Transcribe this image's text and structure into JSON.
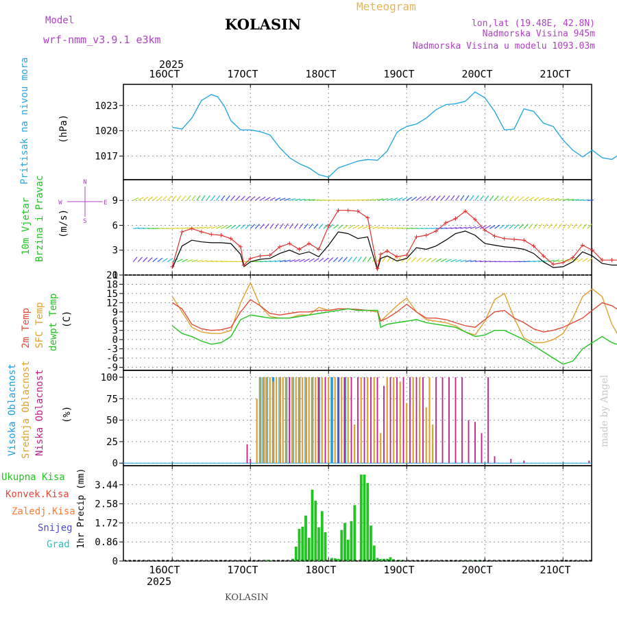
{
  "header": {
    "model_label": "Model",
    "model_name": "wrf-nmm_v3.9.1  e3km",
    "station": "KOLASIN",
    "product": "Meteogram",
    "coords": "lon,lat (19.48E, 42.8N)",
    "elevation": "Nadmorska Visina 945m",
    "model_elevation": "Nadmorska Visina u modelu 1093.03m"
  },
  "footer": {
    "station": "KOLASIN",
    "credit": "made by Angel"
  },
  "time_axis": {
    "year": "2025",
    "day_labels": [
      "16OCT",
      "17OCT",
      "18OCT",
      "19OCT",
      "20OCT",
      "21OCT"
    ]
  },
  "colors": {
    "pressure": "#2aa8e0",
    "wind_speed": "#000000",
    "wind_gust": "#e03030",
    "t2m": "#e04a3a",
    "tsfc": "#e0a030",
    "dewpoint": "#22c322",
    "high_cloud": "#1aa0e0",
    "mid_cloud": "#e0a030",
    "low_cloud": "#c0208a",
    "precip": "#22c322",
    "grid": "#999999"
  },
  "chart_data": [
    {
      "type": "line",
      "panel": "pressure",
      "ylabel_primary": "Pritisak na nivou mora",
      "unit": "(hPa)",
      "yticks": [
        1017,
        1020,
        1023
      ],
      "ylim": [
        1014.2,
        1025.5
      ],
      "x": [
        0,
        3,
        6,
        9,
        12,
        14,
        16,
        18,
        21,
        24,
        27,
        30,
        33,
        36,
        39,
        42,
        45,
        48,
        51,
        54,
        57,
        60,
        63,
        66,
        69,
        70,
        72,
        75,
        78,
        81,
        84,
        87,
        90,
        93,
        96,
        99,
        102,
        105,
        108,
        111,
        114,
        117,
        120,
        123,
        126,
        129,
        132,
        135,
        138,
        141,
        144,
        147,
        150,
        153,
        156,
        158
      ],
      "values": [
        1020.4,
        1020.2,
        1021.5,
        1023.6,
        1024.3,
        1024.0,
        1022.9,
        1021.2,
        1020.1,
        1020.1,
        1019.9,
        1019.5,
        1018.0,
        1016.8,
        1016.1,
        1015.6,
        1014.8,
        1014.5,
        1015.6,
        1016.0,
        1016.4,
        1016.6,
        1016.5,
        1017.6,
        1019.8,
        1020.1,
        1020.5,
        1020.8,
        1021.5,
        1022.5,
        1023.1,
        1023.2,
        1023.5,
        1024.6,
        1023.9,
        1022.3,
        1020.1,
        1020.2,
        1022.6,
        1022.3,
        1020.9,
        1020.5,
        1018.9,
        1017.7,
        1016.9,
        1017.7,
        1016.8,
        1016.6,
        1017.4,
        1016.7,
        1016.2,
        1015.7,
        1015.1,
        1014.8,
        1014.6,
        1014.4
      ]
    },
    {
      "type": "line",
      "panel": "wind",
      "ylabel_primary": "10m Vjetar",
      "ylabel_secondary": "Brzina i Pravac",
      "unit": "(m/s)",
      "compass": [
        "N",
        "W",
        "E",
        "S"
      ],
      "yticks": [
        0,
        3,
        6,
        9
      ],
      "ylim": [
        0,
        11.5
      ],
      "x": [
        0,
        3,
        6,
        9,
        12,
        15,
        18,
        21,
        22,
        24,
        27,
        30,
        33,
        36,
        39,
        42,
        45,
        48,
        51,
        54,
        57,
        60,
        63,
        64,
        66,
        69,
        72,
        75,
        78,
        81,
        84,
        87,
        90,
        93,
        96,
        99,
        102,
        105,
        108,
        111,
        114,
        117,
        120,
        123,
        126,
        129,
        132,
        135,
        138,
        141,
        144,
        147,
        150,
        153,
        156,
        158
      ],
      "series": [
        {
          "name": "speed",
          "values": [
            0.8,
            3.5,
            4.2,
            4.0,
            3.9,
            3.9,
            3.8,
            2.5,
            1.0,
            1.6,
            1.9,
            2.0,
            2.6,
            3.0,
            2.5,
            2.8,
            2.2,
            3.6,
            5.2,
            5.0,
            4.4,
            4.6,
            0.6,
            2.0,
            2.3,
            1.7,
            2.0,
            3.3,
            3.1,
            3.5,
            4.2,
            5.0,
            5.3,
            4.8,
            3.8,
            3.6,
            3.4,
            3.3,
            3.1,
            2.6,
            1.6,
            0.9,
            1.0,
            1.6,
            2.8,
            2.3,
            1.4,
            1.2,
            1.2,
            1.6,
            1.6,
            1.9,
            1.9,
            2.8,
            5.1,
            6.0
          ]
        },
        {
          "name": "gust",
          "values": [
            1.0,
            5.2,
            5.6,
            5.2,
            4.9,
            4.8,
            4.4,
            3.4,
            1.2,
            2.0,
            2.3,
            2.4,
            3.4,
            3.8,
            3.1,
            3.8,
            3.1,
            5.9,
            7.8,
            7.8,
            7.7,
            6.9,
            0.8,
            2.5,
            2.9,
            2.2,
            2.4,
            4.6,
            4.8,
            5.3,
            6.3,
            6.8,
            7.7,
            6.7,
            5.4,
            4.7,
            4.4,
            4.3,
            4.2,
            3.5,
            2.3,
            1.3,
            1.5,
            2.1,
            3.6,
            3.0,
            1.8,
            1.8,
            1.8,
            2.4,
            2.3,
            2.8,
            3.0,
            3.8,
            6.4,
            7.1
          ]
        }
      ]
    },
    {
      "type": "line",
      "panel": "temperature",
      "labels": [
        "2m Temp",
        "SFC Temp",
        "dewpt Temp"
      ],
      "unit": "(C)",
      "yticks": [
        -9,
        -6,
        -3,
        0,
        3,
        6,
        9,
        12,
        15,
        18,
        21
      ],
      "ylim": [
        -10,
        21
      ],
      "x": [
        0,
        3,
        6,
        9,
        12,
        15,
        18,
        21,
        24,
        27,
        30,
        33,
        36,
        39,
        42,
        45,
        48,
        51,
        54,
        57,
        60,
        63,
        64,
        66,
        69,
        72,
        75,
        78,
        81,
        84,
        87,
        90,
        93,
        96,
        99,
        102,
        105,
        108,
        111,
        114,
        117,
        120,
        123,
        126,
        129,
        132,
        135,
        138,
        141,
        144,
        147,
        150,
        153,
        156,
        158
      ],
      "series": [
        {
          "name": "2m Temp",
          "values": [
            12,
            10,
            5,
            3.5,
            3.0,
            3.2,
            4.0,
            9.0,
            13.0,
            11.0,
            8.5,
            8.0,
            8.5,
            9.0,
            9.0,
            9.5,
            9.5,
            10.0,
            10.0,
            9.8,
            9.5,
            9.5,
            6.0,
            7.0,
            9.0,
            11.5,
            9.0,
            7.0,
            7.0,
            6.5,
            5.5,
            4.5,
            4.0,
            6.5,
            9.0,
            9.5,
            7.0,
            5.5,
            3.5,
            2.5,
            3.0,
            4.0,
            5.5,
            7.0,
            9.5,
            12.0,
            11.0,
            9.0,
            7.0,
            5.0,
            4.0,
            4.0,
            8.5,
            11.5,
            11.5
          ]
        },
        {
          "name": "SFC Temp",
          "values": [
            14,
            9,
            4,
            2.5,
            2.0,
            2.0,
            3.0,
            12.0,
            18.5,
            11.0,
            7.5,
            7.0,
            7.0,
            8.0,
            8.0,
            10.5,
            9.5,
            10.0,
            10.0,
            9.5,
            9.5,
            9.0,
            6.0,
            8.0,
            11.0,
            13.5,
            9.0,
            6.5,
            6.0,
            5.5,
            4.5,
            2.5,
            1.5,
            6.0,
            13.0,
            15.0,
            7.0,
            0.5,
            -1.0,
            -1.0,
            0.0,
            2.0,
            7.0,
            14.0,
            16.5,
            14.0,
            5.0,
            -0.5,
            -1.0,
            -1.0,
            0.0,
            4.0,
            13.0,
            15.5,
            15.0
          ]
        },
        {
          "name": "dewpt Temp",
          "values": [
            4.5,
            2.0,
            1.0,
            -0.5,
            -1.5,
            -1.0,
            1.0,
            6.5,
            8.0,
            7.5,
            7.0,
            7.0,
            7.0,
            7.5,
            8.0,
            8.5,
            9.0,
            9.5,
            10.0,
            9.5,
            9.5,
            9.5,
            4.0,
            5.0,
            5.5,
            6.0,
            6.5,
            5.5,
            5.0,
            4.5,
            4.0,
            2.5,
            1.0,
            1.5,
            3.0,
            3.0,
            1.5,
            0.0,
            -2.0,
            -4.0,
            -6.0,
            -8.0,
            -7.0,
            -3.0,
            -1.0,
            1.0,
            -1.0,
            -2.0,
            -4.0,
            -3.5,
            -2.0,
            0.0,
            3.0,
            2.5,
            1.5
          ]
        }
      ]
    },
    {
      "type": "bar",
      "panel": "clouds",
      "labels": [
        "Visoka Oblacnost",
        "Srednja Oblacnost",
        "Niska Oblacnost"
      ],
      "unit": "(%)",
      "yticks": [
        0,
        25,
        50,
        75,
        100
      ],
      "ylim": [
        -3,
        108
      ],
      "series": [
        {
          "name": "Visoka Oblacnost",
          "x": [
            27,
            28,
            29,
            31,
            33,
            35,
            37,
            39,
            41,
            43,
            45,
            49,
            51,
            53,
            141,
            142,
            143,
            144,
            145,
            146,
            147,
            148,
            149,
            150,
            151
          ],
          "values": [
            100,
            100,
            100,
            100,
            100,
            100,
            100,
            100,
            100,
            100,
            100,
            100,
            100,
            100,
            10,
            25,
            100,
            100,
            100,
            84,
            100,
            100,
            100,
            100,
            100
          ]
        },
        {
          "name": "Srednja Oblacnost",
          "x": [
            26,
            27,
            28,
            29,
            30,
            31,
            32,
            33,
            34,
            35,
            36,
            37,
            38,
            39,
            40,
            41,
            42,
            43,
            44,
            45,
            46,
            48,
            50,
            52,
            54,
            56,
            58,
            60,
            62,
            64,
            66,
            68,
            70,
            72,
            74,
            76,
            78,
            79,
            80,
            150
          ],
          "values": [
            75,
            100,
            100,
            100,
            100,
            95,
            100,
            100,
            100,
            100,
            100,
            100,
            100,
            100,
            100,
            100,
            100,
            100,
            100,
            100,
            100,
            100,
            100,
            100,
            100,
            45,
            100,
            100,
            100,
            35,
            100,
            100,
            95,
            70,
            100,
            100,
            65,
            100,
            45,
            100
          ]
        },
        {
          "name": "Niska Oblacnost",
          "x": [
            23,
            24,
            36,
            45,
            47,
            51,
            53,
            55,
            57,
            59,
            61,
            63,
            65,
            67,
            69,
            71,
            73,
            75,
            77,
            81,
            83,
            85,
            87,
            89,
            91,
            93,
            95,
            97,
            99,
            104,
            108,
            128,
            140,
            152
          ],
          "values": [
            22,
            5,
            100,
            100,
            100,
            100,
            100,
            100,
            100,
            100,
            100,
            100,
            90,
            100,
            100,
            100,
            100,
            100,
            100,
            100,
            100,
            100,
            100,
            100,
            50,
            48,
            35,
            100,
            8,
            5,
            3,
            3,
            6,
            8
          ]
        }
      ]
    },
    {
      "type": "bar",
      "panel": "precip",
      "labels": [
        "Ukupna Kisa",
        "Konvek.Kisa",
        "Zaledj.Kisa",
        "Snijeg",
        "Grad"
      ],
      "unit": "1hr Precip (mm)",
      "yticks": [
        0,
        0.86,
        1.72,
        2.58,
        3.44
      ],
      "ylim": [
        0,
        4.3
      ],
      "x": [
        29,
        30,
        37,
        38,
        39,
        40,
        41,
        42,
        43,
        44,
        45,
        46,
        47,
        49,
        50,
        51,
        52,
        53,
        54,
        55,
        56,
        58,
        59,
        60,
        61,
        62,
        63,
        64,
        65,
        66,
        67,
        68,
        70,
        90,
        92,
        94
      ],
      "values": [
        0.05,
        0.03,
        0.1,
        0.65,
        1.45,
        1.55,
        2.05,
        1.05,
        3.22,
        2.72,
        1.52,
        2.25,
        1.3,
        0.14,
        0.12,
        0.1,
        1.4,
        1.72,
        0.96,
        1.8,
        2.52,
        3.9,
        3.9,
        3.52,
        1.6,
        0.7,
        0.14,
        0.09,
        0.1,
        0.1,
        0.17,
        0.08,
        0.05,
        0.03,
        0.02,
        0.02
      ]
    }
  ]
}
